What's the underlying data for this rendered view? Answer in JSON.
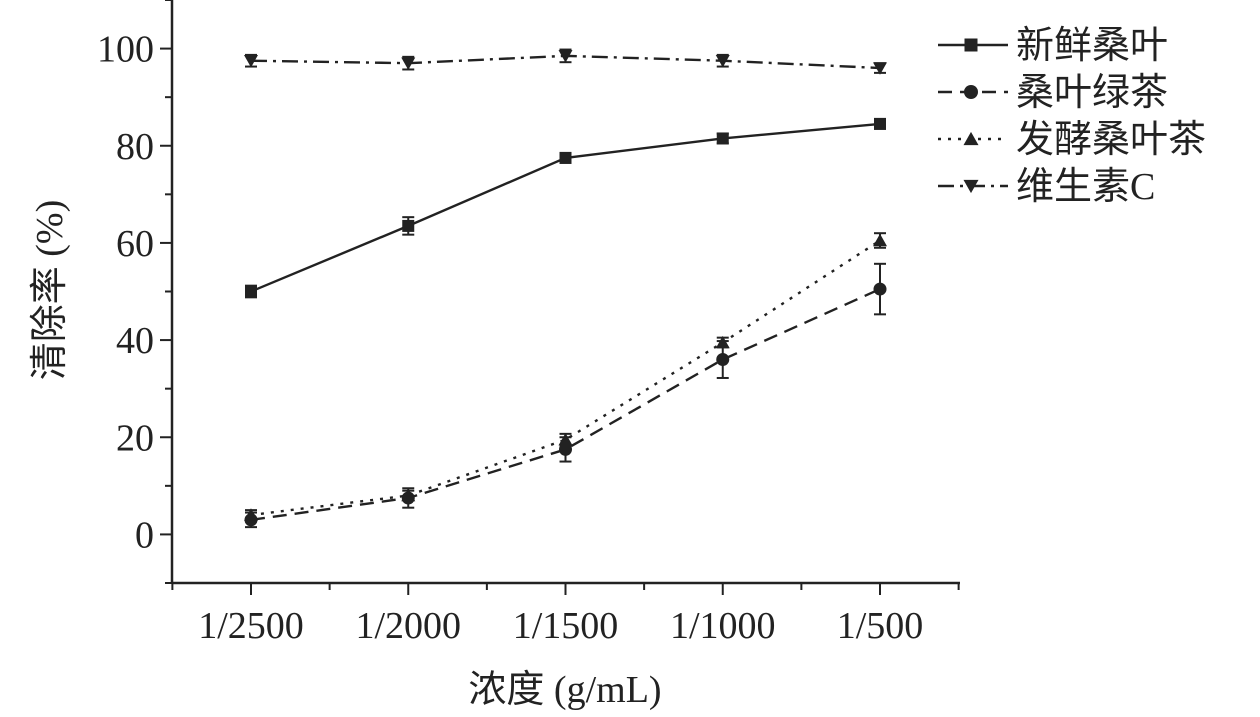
{
  "chart_data": {
    "type": "line",
    "categories": [
      "1/2500",
      "1/2000",
      "1/1500",
      "1/1000",
      "1/500"
    ],
    "xlabel": "浓度 (g/mL)",
    "ylabel": "清除率 (%)",
    "ylim": [
      -10,
      110
    ],
    "yticks": [
      0,
      20,
      40,
      60,
      80,
      100
    ],
    "legend_position": "top-right",
    "grid": false,
    "series": [
      {
        "name": "新鲜桑叶",
        "marker": "square",
        "dash": "solid",
        "color": "#222222",
        "values": [
          50.0,
          63.5,
          77.5,
          81.5,
          84.5
        ],
        "errors": [
          1.2,
          1.8,
          1.0,
          1.0,
          1.0
        ]
      },
      {
        "name": "桑叶绿茶",
        "marker": "circle",
        "dash": "dashed",
        "color": "#222222",
        "values": [
          3.0,
          7.5,
          17.5,
          36.0,
          50.5
        ],
        "errors": [
          1.5,
          2.0,
          2.5,
          3.8,
          5.2
        ]
      },
      {
        "name": "发酵桑叶茶",
        "marker": "triangle-up",
        "dash": "dotted",
        "color": "#222222",
        "values": [
          4.0,
          8.0,
          19.5,
          39.5,
          60.5
        ],
        "errors": [
          1.0,
          1.0,
          1.2,
          1.0,
          1.5
        ]
      },
      {
        "name": "维生素C",
        "marker": "triangle-down",
        "dash": "dashdot",
        "color": "#222222",
        "values": [
          97.5,
          97.0,
          98.5,
          97.5,
          96.0
        ],
        "errors": [
          1.2,
          1.3,
          1.3,
          1.2,
          1.0
        ]
      }
    ]
  }
}
